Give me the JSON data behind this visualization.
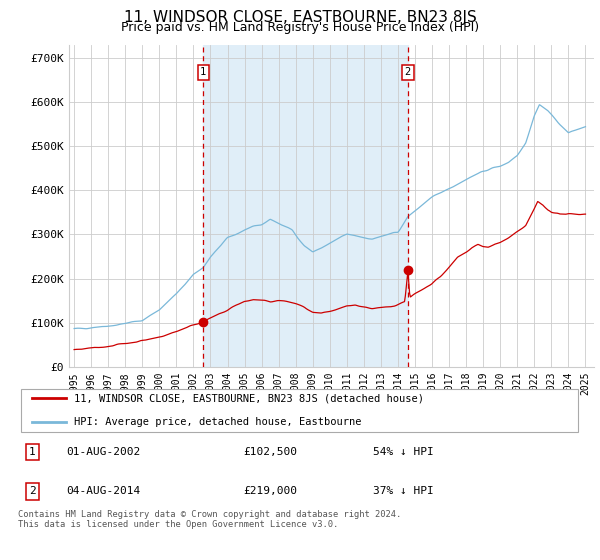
{
  "title": "11, WINDSOR CLOSE, EASTBOURNE, BN23 8JS",
  "subtitle": "Price paid vs. HM Land Registry's House Price Index (HPI)",
  "title_fontsize": 11,
  "subtitle_fontsize": 9,
  "ylabel_ticks": [
    "£0",
    "£100K",
    "£200K",
    "£300K",
    "£400K",
    "£500K",
    "£600K",
    "£700K"
  ],
  "ytick_vals": [
    0,
    100000,
    200000,
    300000,
    400000,
    500000,
    600000,
    700000
  ],
  "ylim": [
    0,
    730000
  ],
  "xlim_start": 1994.7,
  "xlim_end": 2025.5,
  "hpi_color": "#7ab8d9",
  "price_color": "#cc0000",
  "bg_shaded_color": "#e0eef8",
  "vline_color": "#cc0000",
  "marker_color": "#cc0000",
  "grid_color": "#cccccc",
  "purchase1_x": 2002.58,
  "purchase1_y": 102500,
  "purchase2_x": 2014.58,
  "purchase2_y": 219000,
  "legend_label_price": "11, WINDSOR CLOSE, EASTBOURNE, BN23 8JS (detached house)",
  "legend_label_hpi": "HPI: Average price, detached house, Eastbourne",
  "annotation1": "1",
  "annotation2": "2",
  "footer": "Contains HM Land Registry data © Crown copyright and database right 2024.\nThis data is licensed under the Open Government Licence v3.0.",
  "xtick_years": [
    1995,
    1996,
    1997,
    1998,
    1999,
    2000,
    2001,
    2002,
    2003,
    2004,
    2005,
    2006,
    2007,
    2008,
    2009,
    2010,
    2011,
    2012,
    2013,
    2014,
    2015,
    2016,
    2017,
    2018,
    2019,
    2020,
    2021,
    2022,
    2023,
    2024,
    2025
  ]
}
